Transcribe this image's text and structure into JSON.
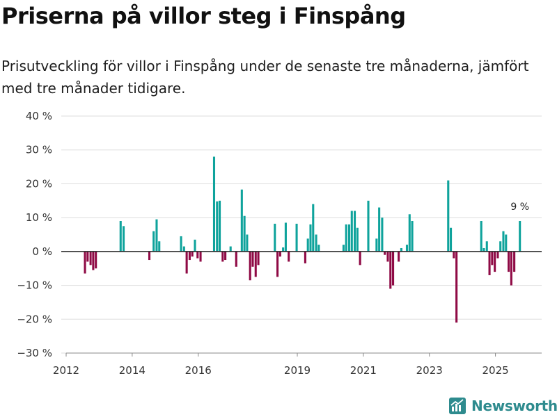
{
  "title": "Priserna på villor steg i Finspång",
  "subtitle": "Prisutveckling för villor i Finspång under de senaste tre månaderna, jämfört med tre månader tidigare.",
  "brand": {
    "name": "Newsworthy"
  },
  "colors": {
    "positive": "#0fa39c",
    "negative": "#8f0a45",
    "grid": "#dddddd",
    "zero": "#222222",
    "brand": "#2e8b8e"
  },
  "chart_data": {
    "type": "bar",
    "title": "Priserna på villor steg i Finspång",
    "xlabel": "",
    "ylabel": "",
    "unit": "%",
    "ylim": [
      -30,
      40
    ],
    "yticks": [
      {
        "value": 40,
        "label": "40 %"
      },
      {
        "value": 30,
        "label": "30 %"
      },
      {
        "value": 20,
        "label": "20 %"
      },
      {
        "value": 10,
        "label": "10 %"
      },
      {
        "value": 0,
        "label": "0 %"
      },
      {
        "value": -10,
        "label": "−10 %"
      },
      {
        "value": -20,
        "label": "−20 %"
      },
      {
        "value": -30,
        "label": "−30 %"
      }
    ],
    "xlim": [
      2012.0,
      2026.4
    ],
    "xticks": [
      {
        "value": 2012.0,
        "label": "2012"
      },
      {
        "value": 2014.0,
        "label": "2014"
      },
      {
        "value": 2016.0,
        "label": "2016"
      },
      {
        "value": 2019.0,
        "label": "2019"
      },
      {
        "value": 2021.0,
        "label": "2021"
      },
      {
        "value": 2023.0,
        "label": "2023"
      },
      {
        "value": 2025.0,
        "label": "2025"
      }
    ],
    "bar_width_years": 0.065,
    "points": [
      {
        "x": 2012.57,
        "value": -6.5
      },
      {
        "x": 2012.65,
        "value": -3
      },
      {
        "x": 2012.74,
        "value": -4
      },
      {
        "x": 2012.82,
        "value": -5.5
      },
      {
        "x": 2012.9,
        "value": -5
      },
      {
        "x": 2013.65,
        "value": 9
      },
      {
        "x": 2013.74,
        "value": 7.5
      },
      {
        "x": 2014.52,
        "value": -2.5
      },
      {
        "x": 2014.65,
        "value": 6
      },
      {
        "x": 2014.74,
        "value": 9.5
      },
      {
        "x": 2014.82,
        "value": 3
      },
      {
        "x": 2015.48,
        "value": 4.5
      },
      {
        "x": 2015.57,
        "value": 1.5
      },
      {
        "x": 2015.65,
        "value": -6.5
      },
      {
        "x": 2015.74,
        "value": -2.5
      },
      {
        "x": 2015.82,
        "value": -1.5
      },
      {
        "x": 2015.9,
        "value": 3.5
      },
      {
        "x": 2015.98,
        "value": -2
      },
      {
        "x": 2016.07,
        "value": -3
      },
      {
        "x": 2016.48,
        "value": 28
      },
      {
        "x": 2016.57,
        "value": 14.8
      },
      {
        "x": 2016.65,
        "value": 15
      },
      {
        "x": 2016.74,
        "value": -3
      },
      {
        "x": 2016.82,
        "value": -2.5
      },
      {
        "x": 2016.98,
        "value": 1.5
      },
      {
        "x": 2017.15,
        "value": -4.5
      },
      {
        "x": 2017.32,
        "value": 18.3
      },
      {
        "x": 2017.4,
        "value": 10.5
      },
      {
        "x": 2017.48,
        "value": 5
      },
      {
        "x": 2017.57,
        "value": -8.5
      },
      {
        "x": 2017.65,
        "value": -4.5
      },
      {
        "x": 2017.74,
        "value": -7.5
      },
      {
        "x": 2017.82,
        "value": -4
      },
      {
        "x": 2018.32,
        "value": 8.2
      },
      {
        "x": 2018.4,
        "value": -7.5
      },
      {
        "x": 2018.48,
        "value": -1.5
      },
      {
        "x": 2018.57,
        "value": 1.2
      },
      {
        "x": 2018.65,
        "value": 8.5
      },
      {
        "x": 2018.74,
        "value": -3
      },
      {
        "x": 2018.98,
        "value": 8.2
      },
      {
        "x": 2019.24,
        "value": -3.5
      },
      {
        "x": 2019.32,
        "value": 3.8
      },
      {
        "x": 2019.4,
        "value": 8
      },
      {
        "x": 2019.48,
        "value": 14
      },
      {
        "x": 2019.57,
        "value": 5
      },
      {
        "x": 2019.65,
        "value": 2
      },
      {
        "x": 2020.4,
        "value": 2
      },
      {
        "x": 2020.48,
        "value": 8
      },
      {
        "x": 2020.57,
        "value": 8
      },
      {
        "x": 2020.65,
        "value": 12
      },
      {
        "x": 2020.74,
        "value": 12
      },
      {
        "x": 2020.82,
        "value": 7
      },
      {
        "x": 2020.9,
        "value": -4
      },
      {
        "x": 2021.15,
        "value": 15
      },
      {
        "x": 2021.4,
        "value": 3.8
      },
      {
        "x": 2021.48,
        "value": 13
      },
      {
        "x": 2021.57,
        "value": 10
      },
      {
        "x": 2021.65,
        "value": -1
      },
      {
        "x": 2021.74,
        "value": -3
      },
      {
        "x": 2021.82,
        "value": -11
      },
      {
        "x": 2021.9,
        "value": -10
      },
      {
        "x": 2022.07,
        "value": -3
      },
      {
        "x": 2022.15,
        "value": 1
      },
      {
        "x": 2022.32,
        "value": 2
      },
      {
        "x": 2022.4,
        "value": 11
      },
      {
        "x": 2022.48,
        "value": 9
      },
      {
        "x": 2023.57,
        "value": 21
      },
      {
        "x": 2023.65,
        "value": 7
      },
      {
        "x": 2023.74,
        "value": -2
      },
      {
        "x": 2023.82,
        "value": -21
      },
      {
        "x": 2024.57,
        "value": 9
      },
      {
        "x": 2024.65,
        "value": 1
      },
      {
        "x": 2024.74,
        "value": 3
      },
      {
        "x": 2024.82,
        "value": -7
      },
      {
        "x": 2024.9,
        "value": -4
      },
      {
        "x": 2024.98,
        "value": -6
      },
      {
        "x": 2025.07,
        "value": -2
      },
      {
        "x": 2025.15,
        "value": 3
      },
      {
        "x": 2025.24,
        "value": 6
      },
      {
        "x": 2025.32,
        "value": 5
      },
      {
        "x": 2025.4,
        "value": -6
      },
      {
        "x": 2025.48,
        "value": -10
      },
      {
        "x": 2025.57,
        "value": -6
      },
      {
        "x": 2025.74,
        "value": 9
      }
    ],
    "annotations": [
      {
        "x": 2025.74,
        "value": 9,
        "label": "9 %"
      }
    ]
  }
}
